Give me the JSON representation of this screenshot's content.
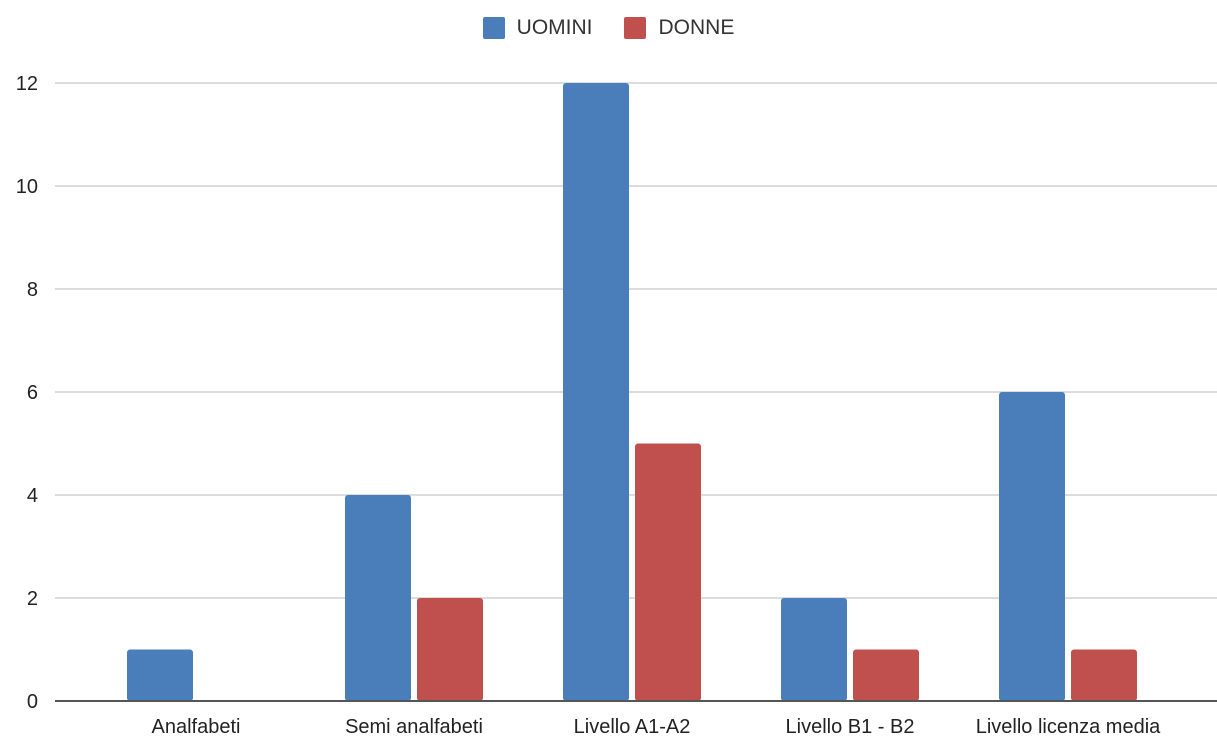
{
  "chart_data": {
    "type": "bar",
    "categories": [
      "Analfabeti",
      "Semi analfabeti",
      "Livello A1-A2",
      "Livello B1 - B2",
      "Livello licenza media"
    ],
    "series": [
      {
        "name": "UOMINI",
        "values": [
          1,
          4,
          12,
          2,
          6
        ],
        "color": "#4a7ebb"
      },
      {
        "name": "DONNE",
        "values": [
          0,
          2,
          5,
          1,
          1
        ],
        "color": "#c0504d"
      }
    ],
    "yticks": [
      0,
      2,
      4,
      6,
      8,
      10,
      12
    ],
    "ylim": [
      0,
      12
    ],
    "grid": true,
    "legend": "top-center",
    "title": "",
    "xlabel": "",
    "ylabel": ""
  },
  "legend": {
    "items": [
      {
        "label": "UOMINI",
        "color": "#4a7ebb"
      },
      {
        "label": "DONNE",
        "color": "#c0504d"
      }
    ]
  }
}
